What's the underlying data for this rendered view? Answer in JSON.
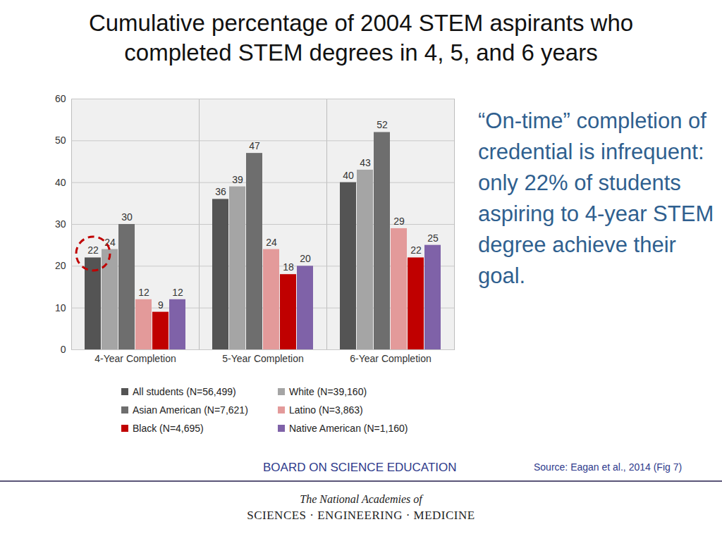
{
  "chart_data": {
    "type": "bar",
    "title": "Cumulative percentage of 2004 STEM aspirants who completed STEM degrees in 4, 5, and 6 years",
    "categories": [
      "4-Year Completion",
      "5-Year Completion",
      "6-Year Completion"
    ],
    "series": [
      {
        "name": "All students (N=56,499)",
        "color": "#545454",
        "values": [
          22,
          36,
          40
        ]
      },
      {
        "name": "White (N=39,160)",
        "color": "#a5a5a5",
        "values": [
          24,
          39,
          43
        ]
      },
      {
        "name": "Asian American (N=7,621)",
        "color": "#6e6e6e",
        "values": [
          30,
          47,
          52
        ]
      },
      {
        "name": "Latino (N=3,863)",
        "color": "#e39a9a",
        "values": [
          12,
          24,
          29
        ]
      },
      {
        "name": "Black (N=4,695)",
        "color": "#c00000",
        "values": [
          9,
          18,
          22
        ]
      },
      {
        "name": "Native American (N=1,160)",
        "color": "#7f62a8",
        "values": [
          12,
          20,
          25
        ]
      }
    ],
    "ylim": [
      0,
      60
    ],
    "yticks": [
      0,
      10,
      20,
      30,
      40,
      50,
      60
    ],
    "grid": true,
    "legend": "bottom",
    "data_labels": true
  },
  "page": {
    "note": "“On-time” completion of credential is infrequent: only 22% of students aspiring to 4-year STEM degree achieve their goal.",
    "footer": "BOARD ON SCIENCE EDUCATION",
    "source": "Source: Eagan et al., 2014 (Fig 7)",
    "logo": [
      "The National Academies of",
      "SCIENCES · ENGINEERING · MEDICINE"
    ]
  }
}
